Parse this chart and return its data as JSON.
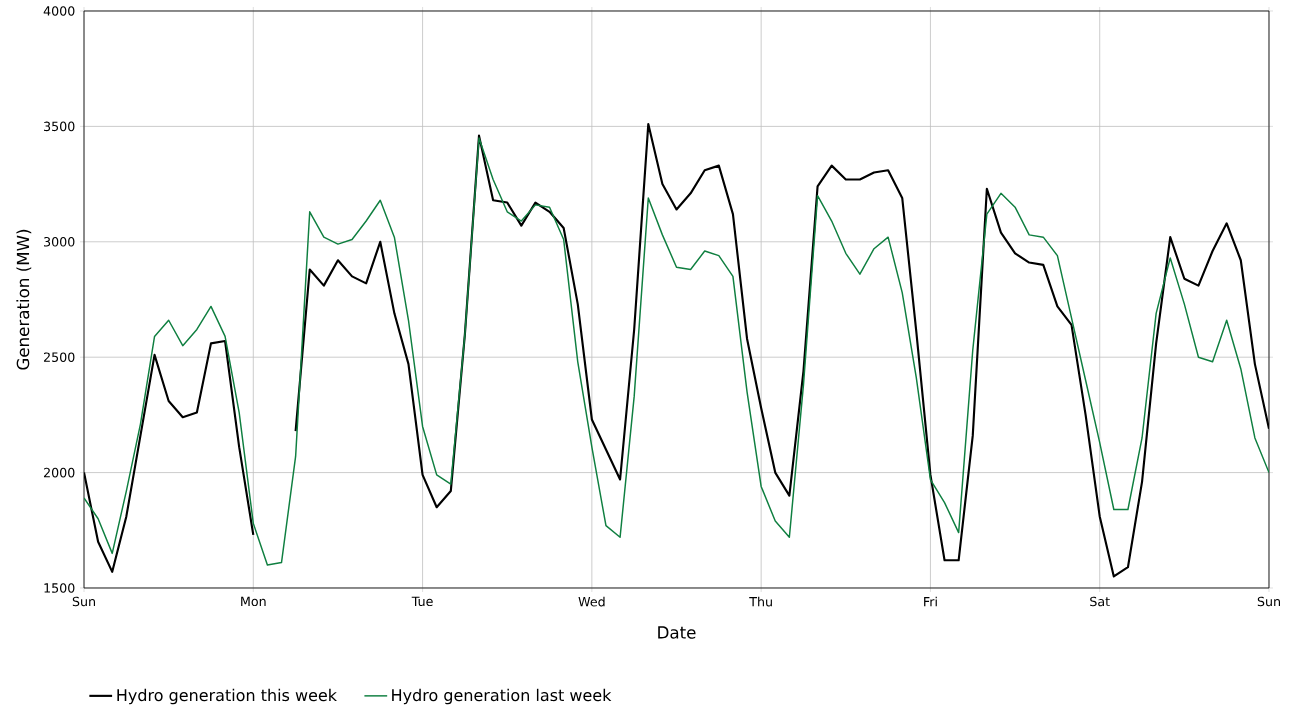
{
  "chart_data": {
    "type": "line",
    "xlabel": "Date",
    "ylabel": "Generation (MW)",
    "ylim": [
      1500,
      4000
    ],
    "categories": [
      "Sun",
      null,
      null,
      null,
      null,
      null,
      null,
      null,
      null,
      null,
      null,
      null,
      "Mon",
      null,
      null,
      null,
      null,
      null,
      null,
      null,
      null,
      null,
      null,
      null,
      "Tue",
      null,
      null,
      null,
      null,
      null,
      null,
      null,
      null,
      null,
      null,
      null,
      "Wed",
      null,
      null,
      null,
      null,
      null,
      null,
      null,
      null,
      null,
      null,
      null,
      "Thu",
      null,
      null,
      null,
      null,
      null,
      null,
      null,
      null,
      null,
      null,
      null,
      "Fri",
      null,
      null,
      null,
      null,
      null,
      null,
      null,
      null,
      null,
      null,
      null,
      "Sat",
      null,
      null,
      null,
      null,
      null,
      null,
      null,
      null,
      null,
      null,
      null,
      "Sun"
    ],
    "yticks": [
      1500,
      2000,
      2500,
      3000,
      3500,
      4000
    ],
    "grid": true,
    "legend": "bottom",
    "marker": "none",
    "line_style": "solid",
    "series": [
      {
        "name": "Hydro generation this week",
        "color": "#000000",
        "values": [
          2000,
          1700,
          1570,
          1810,
          2160,
          2510,
          2310,
          2240,
          2260,
          2560,
          2570,
          2110,
          1730,
          null,
          null,
          2180,
          2880,
          2810,
          2920,
          2850,
          2820,
          3000,
          2690,
          2470,
          1990,
          1850,
          1920,
          2600,
          3460,
          3180,
          3170,
          3070,
          3170,
          3130,
          3060,
          2730,
          2230,
          2100,
          1970,
          2620,
          3510,
          3250,
          3140,
          3210,
          3310,
          3330,
          3120,
          2580,
          2280,
          2000,
          1900,
          2440,
          3240,
          3330,
          3270,
          3270,
          3300,
          3310,
          3190,
          2610,
          1990,
          1620,
          1620,
          2160,
          3230,
          3040,
          2950,
          2910,
          2900,
          2720,
          2640,
          2250,
          1810,
          1550,
          1590,
          1960,
          2560,
          3020,
          2840,
          2810,
          2960,
          3080,
          2920,
          2470,
          2190
        ]
      },
      {
        "name": "Hydro generation last week",
        "color": "#0f7f40",
        "values": [
          1890,
          1800,
          1650,
          1920,
          2210,
          2590,
          2660,
          2550,
          2620,
          2720,
          2590,
          2260,
          1780,
          1600,
          1610,
          2070,
          3130,
          3020,
          2990,
          3010,
          3090,
          3180,
          3020,
          2660,
          2200,
          1990,
          1950,
          2600,
          3450,
          3270,
          3130,
          3090,
          3160,
          3150,
          3010,
          2480,
          2110,
          1770,
          1720,
          2330,
          3190,
          3030,
          2890,
          2880,
          2960,
          2940,
          2850,
          2350,
          1940,
          1790,
          1720,
          2380,
          3200,
          3090,
          2950,
          2860,
          2970,
          3020,
          2780,
          2410,
          1970,
          1870,
          1740,
          2530,
          3120,
          3210,
          3150,
          3030,
          3020,
          2940,
          2670,
          2400,
          2130,
          1840,
          1840,
          2150,
          2690,
          2930,
          2730,
          2500,
          2480,
          2660,
          2450,
          2150,
          2000
        ]
      }
    ]
  }
}
